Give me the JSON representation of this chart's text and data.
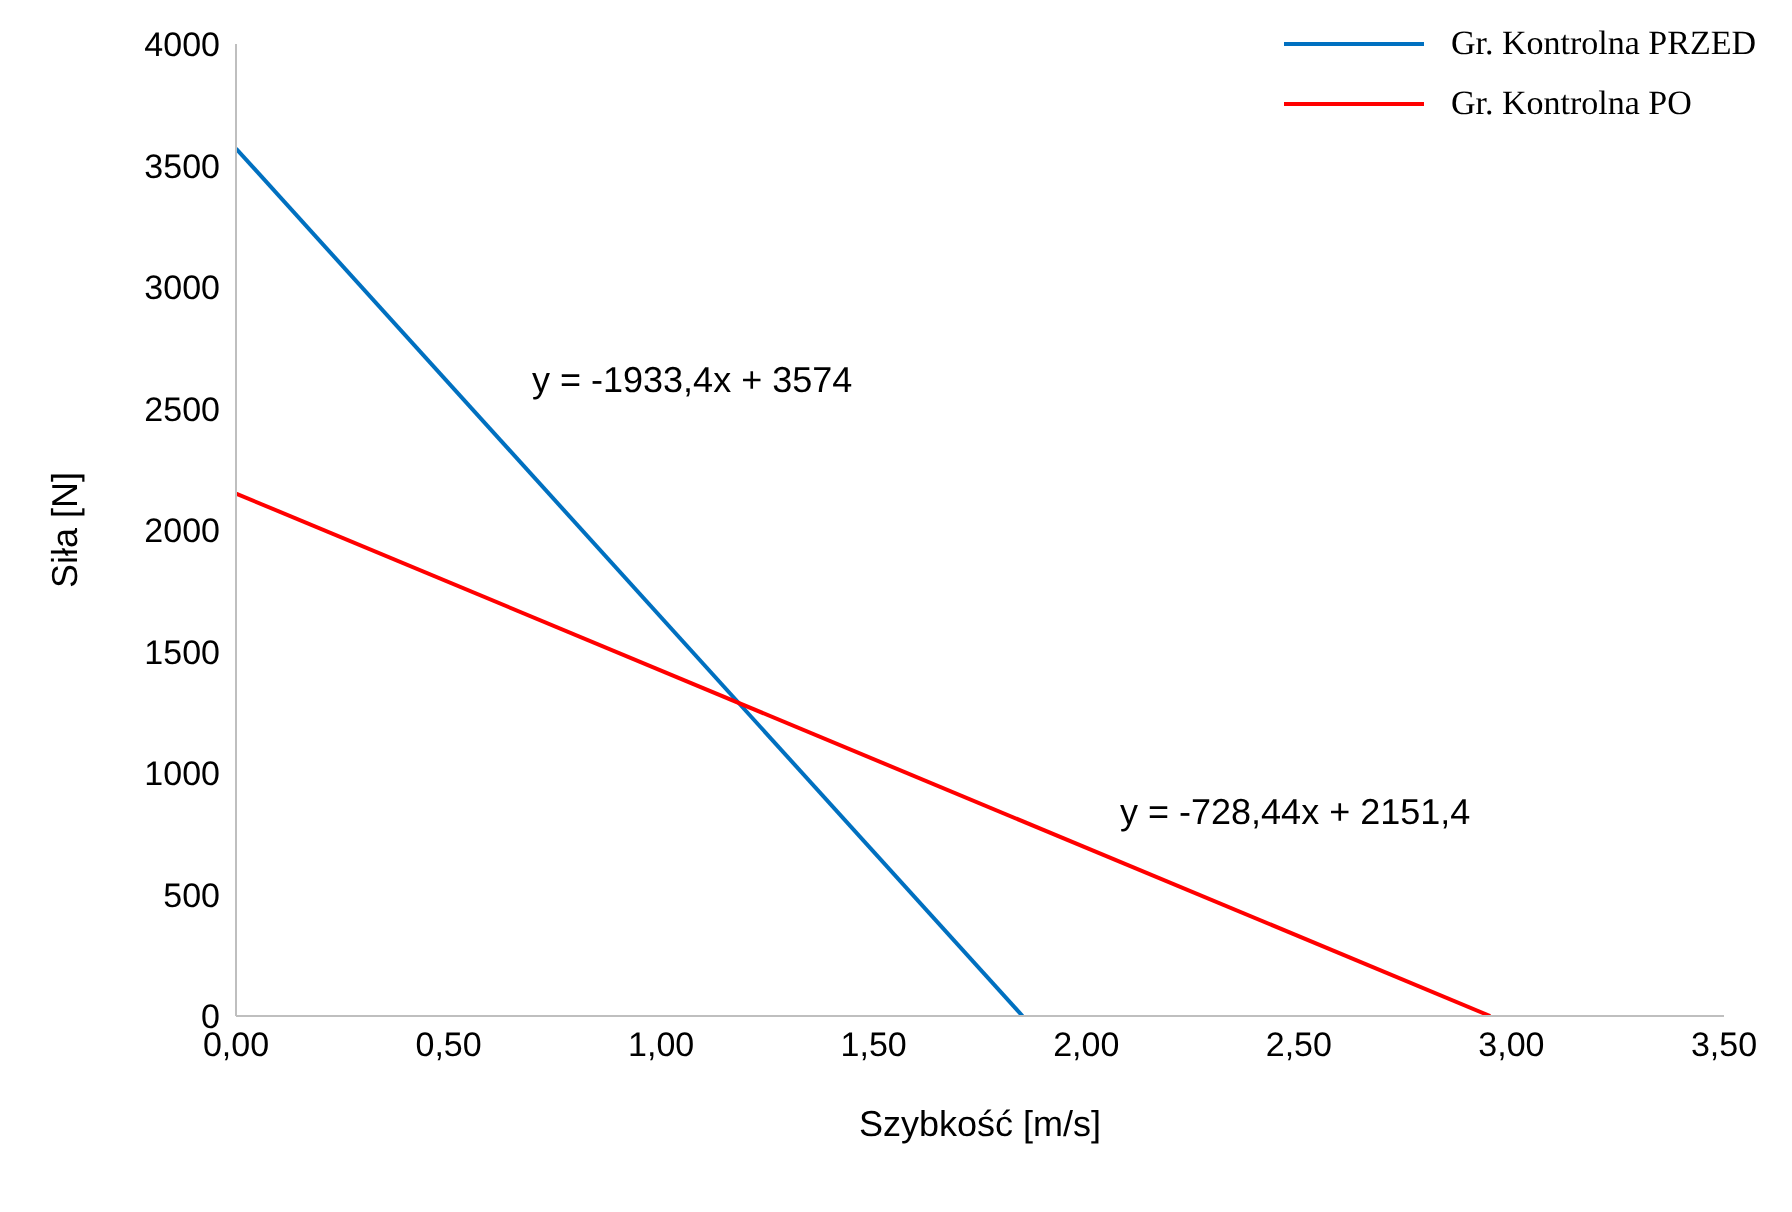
{
  "chart_data": {
    "type": "line",
    "xlabel": "Szybkość [m/s]",
    "ylabel": "Siła [N]",
    "series": [
      {
        "name": "Gr. Kontrolna PRZED",
        "color": "#0070c0",
        "x": [
          0,
          1.85
        ],
        "values": [
          3570,
          0
        ]
      },
      {
        "name": "Gr. Kontrolna PO",
        "color": "#ff0000",
        "x": [
          0,
          2.95
        ],
        "values": [
          2150,
          0
        ]
      }
    ],
    "annotations": [
      "y = -1933,4x + 3574",
      "y = -728,44x + 2151,4"
    ],
    "xlim": [
      0,
      3.5
    ],
    "xticks": [
      {
        "value": 0,
        "label": "0,00"
      },
      {
        "value": 0.5,
        "label": "0,50"
      },
      {
        "value": 1,
        "label": "1,00"
      },
      {
        "value": 1.5,
        "label": "1,50"
      },
      {
        "value": 2,
        "label": "2,00"
      },
      {
        "value": 2.5,
        "label": "2,50"
      },
      {
        "value": 3,
        "label": "3,00"
      },
      {
        "value": 3.5,
        "label": "3,50"
      }
    ],
    "ylim": [
      0,
      4000
    ],
    "yticks": [
      0,
      500,
      1000,
      1500,
      2000,
      2500,
      3000,
      3500,
      4000
    ],
    "grid": false,
    "legend": "top right",
    "marker": "none",
    "line_style": "solid"
  }
}
